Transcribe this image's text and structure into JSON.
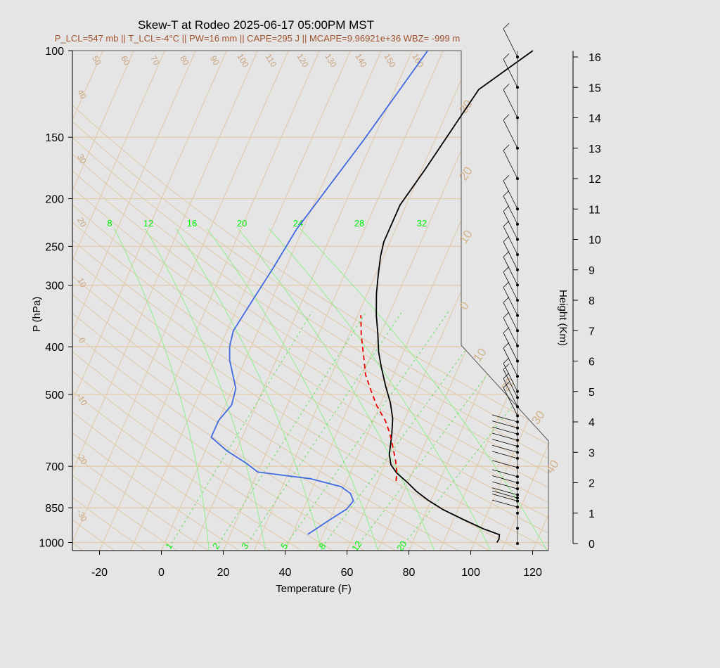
{
  "header": {
    "title": "Skew-T at Rodeo 2025-06-17 05:00PM MST",
    "subtitle": "P_LCL=547 mb || T_LCL=-4°C || PW=16 mm || CAPE=295 J || MCAPE=9.96921e+36 WBZ= -999 m"
  },
  "chart_data": {
    "type": "line",
    "title": "Skew-T at Rodeo 2025-06-17 05:00PM MST",
    "xlabel": "Temperature (F)",
    "ylabel": "P (hPa)",
    "y2label": "Height (Km)",
    "x_ticks": [
      -20,
      0,
      20,
      40,
      60,
      80,
      100,
      120
    ],
    "p_ticks": [
      100,
      150,
      200,
      250,
      300,
      400,
      500,
      700,
      850,
      1000
    ],
    "height_ticks": [
      0,
      1,
      2,
      3,
      4,
      5,
      6,
      7,
      8,
      9,
      10,
      11,
      12,
      13,
      14,
      15,
      16
    ],
    "mixing_ratio_labels": [
      "8",
      "12",
      "16",
      "20",
      "24",
      "28",
      "32"
    ],
    "mixing_ratio_bottom_labels": [
      "1",
      "2",
      "3",
      "5",
      "8",
      "12",
      "20"
    ],
    "dry_adiabat_labels": [
      "50",
      "60",
      "70",
      "80",
      "90",
      "100",
      "110",
      "120",
      "130",
      "140",
      "150",
      "160"
    ],
    "left_theta_labels": [
      "40",
      "30",
      "20",
      "10",
      "0",
      "-10",
      "-20",
      "-30"
    ],
    "isotherm_labels": [
      "30",
      "20",
      "10",
      "0",
      "10",
      "20",
      "30",
      "40"
    ],
    "series": [
      {
        "name": "Temperature",
        "color": "#000000",
        "points": [
          [
            107.3,
            1000
          ],
          [
            107.5,
            985
          ],
          [
            107,
            964
          ],
          [
            101,
            938
          ],
          [
            93,
            897
          ],
          [
            85,
            856
          ],
          [
            79,
            820
          ],
          [
            74,
            787
          ],
          [
            70,
            756
          ],
          [
            65,
            722
          ],
          [
            62,
            695
          ],
          [
            60,
            662
          ],
          [
            58,
            604
          ],
          [
            56,
            560
          ],
          [
            53,
            520
          ],
          [
            49,
            480
          ],
          [
            45,
            440
          ],
          [
            42,
            410
          ],
          [
            39,
            375
          ],
          [
            36,
            345
          ],
          [
            33,
            312
          ],
          [
            31,
            287
          ],
          [
            29,
            262
          ],
          [
            28,
            245
          ],
          [
            28,
            206
          ],
          [
            31,
            175
          ],
          [
            37,
            120
          ],
          [
            49,
            100
          ]
        ]
      },
      {
        "name": "Dewpoint",
        "color": "#4169e1",
        "points": [
          [
            45,
            963
          ],
          [
            50,
            900
          ],
          [
            54,
            855
          ],
          [
            55,
            823
          ],
          [
            53,
            795
          ],
          [
            49,
            770
          ],
          [
            38,
            742
          ],
          [
            20,
            719
          ],
          [
            15,
            690
          ],
          [
            7,
            651
          ],
          [
            0,
            611
          ],
          [
            0,
            565
          ],
          [
            2,
            525
          ],
          [
            1,
            486
          ],
          [
            -2,
            455
          ],
          [
            -5,
            426
          ],
          [
            -7,
            399
          ],
          [
            -8,
            371
          ],
          [
            -6,
            319
          ],
          [
            -4,
            276
          ],
          [
            -2,
            231
          ],
          [
            7,
            152
          ],
          [
            15,
            100
          ]
        ]
      },
      {
        "name": "Parcel",
        "color": "#ee0000",
        "style": "dashed",
        "points": [
          [
            66,
            750
          ],
          [
            65,
            721
          ],
          [
            63,
            683
          ],
          [
            60,
            638
          ],
          [
            57,
            598
          ],
          [
            54,
            566
          ],
          [
            49,
            527
          ],
          [
            45,
            491
          ],
          [
            41,
            456
          ],
          [
            38,
            421
          ],
          [
            34,
            379
          ],
          [
            31,
            345
          ]
        ]
      }
    ],
    "winds": {
      "color": "#000000",
      "heights_km": [
        0,
        0.5,
        1,
        1.2,
        1.4,
        1.5,
        1.6,
        1.8,
        2,
        2.2,
        2.5,
        2.8,
        3,
        3.2,
        3.4,
        3.6,
        3.8,
        4,
        4.2,
        4.5,
        4.8,
        5,
        5.5,
        6,
        6.5,
        7,
        7.5,
        8,
        8.5,
        9,
        9.5,
        10,
        10.5,
        11,
        12,
        13,
        14,
        15,
        16
      ]
    }
  }
}
